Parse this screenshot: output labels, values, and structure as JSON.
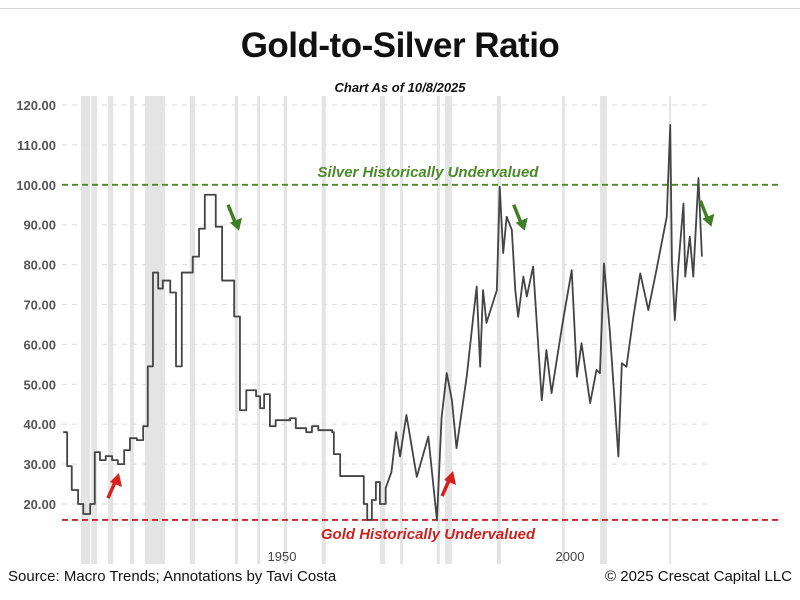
{
  "chart_data": {
    "type": "line",
    "title": "Gold-to-Silver Ratio",
    "subtitle": "Chart As of 10/8/2025",
    "xlabel": "",
    "ylabel": "",
    "xlim": [
      1905,
      2035
    ],
    "ylim": [
      15,
      120
    ],
    "x_tick_labels": [
      {
        "year": 1950,
        "label": "1950"
      },
      {
        "year": 2000,
        "label": "2000"
      }
    ],
    "y_ticks": [
      20,
      30,
      40,
      50,
      60,
      70,
      80,
      90,
      100,
      110,
      120
    ],
    "y_tick_labels": [
      "20.00",
      "30.00",
      "40.00",
      "50.00",
      "60.00",
      "70.00",
      "80.00",
      "90.00",
      "100.00",
      "110.00",
      "120.00"
    ],
    "grid": "horizontal dashed",
    "recession_bands": [
      [
        1915.1,
        1916.7
      ],
      [
        1916.9,
        1917.9
      ],
      [
        1919.8,
        1920.7
      ],
      [
        1923.6,
        1924.3
      ],
      [
        1926.2,
        1929.7
      ],
      [
        1934.0,
        1934.9
      ],
      [
        1941.8,
        1942.4
      ],
      [
        1945.7,
        1946.2
      ],
      [
        1950.3,
        1950.9
      ],
      [
        1956.9,
        1957.6
      ],
      [
        1967.0,
        1967.9
      ],
      [
        1970.5,
        1971.0
      ],
      [
        1976.9,
        1977.4
      ],
      [
        1978.3,
        1979.5
      ],
      [
        1987.3,
        1988.0
      ],
      [
        1998.6,
        1999.1
      ],
      [
        2005.2,
        2006.4
      ],
      [
        2017.2,
        2017.5
      ]
    ],
    "series": [
      {
        "name": "Gold-to-Silver Ratio",
        "color": "#444444",
        "step_until": 1968,
        "points": [
          [
            1912.0,
            38
          ],
          [
            1912.7,
            29.5
          ],
          [
            1913.5,
            23.5
          ],
          [
            1914.6,
            20
          ],
          [
            1915.5,
            17.5
          ],
          [
            1916.7,
            20
          ],
          [
            1917.5,
            33
          ],
          [
            1918.4,
            31
          ],
          [
            1919.4,
            32
          ],
          [
            1920.5,
            31
          ],
          [
            1921.5,
            30
          ],
          [
            1922.6,
            33.5
          ],
          [
            1923.6,
            36.5
          ],
          [
            1924.8,
            36
          ],
          [
            1925.9,
            39.5
          ],
          [
            1926.7,
            54.5
          ],
          [
            1927.6,
            78
          ],
          [
            1928.5,
            74
          ],
          [
            1929.3,
            76
          ],
          [
            1930.6,
            73
          ],
          [
            1931.6,
            54.5
          ],
          [
            1932.6,
            78
          ],
          [
            1934.5,
            82
          ],
          [
            1935.6,
            89
          ],
          [
            1936.6,
            97.5
          ],
          [
            1938.5,
            89.5
          ],
          [
            1939.6,
            76
          ],
          [
            1941.7,
            67
          ],
          [
            1942.7,
            43.5
          ],
          [
            1943.8,
            48.5
          ],
          [
            1945.5,
            47
          ],
          [
            1946.2,
            44
          ],
          [
            1946.9,
            47.5
          ],
          [
            1947.9,
            39.5
          ],
          [
            1948.9,
            41
          ],
          [
            1951.4,
            41.5
          ],
          [
            1952.4,
            39
          ],
          [
            1954.2,
            38
          ],
          [
            1955.2,
            39.5
          ],
          [
            1956.3,
            38.5
          ],
          [
            1958.7,
            38
          ],
          [
            1959.0,
            32.5
          ],
          [
            1960.1,
            27
          ],
          [
            1963.9,
            27
          ],
          [
            1964.2,
            20
          ],
          [
            1964.8,
            16
          ],
          [
            1965.6,
            21
          ],
          [
            1966.3,
            25.5
          ],
          [
            1967.0,
            20
          ],
          [
            1968.0,
            24
          ],
          [
            1969.0,
            28
          ],
          [
            1969.8,
            38
          ],
          [
            1970.5,
            31.9
          ],
          [
            1971.6,
            42.3
          ],
          [
            1973.4,
            26.8
          ],
          [
            1975.4,
            36.9
          ],
          [
            1976.9,
            16
          ],
          [
            1977.7,
            41.6
          ],
          [
            1978.6,
            52.8
          ],
          [
            1979.5,
            46
          ],
          [
            1980.3,
            34
          ],
          [
            1982.1,
            52.3
          ],
          [
            1983.2,
            66.9
          ],
          [
            1983.8,
            74.5
          ],
          [
            1984.4,
            54.4
          ],
          [
            1984.9,
            73.6
          ],
          [
            1985.5,
            65.4
          ],
          [
            1987.3,
            73.6
          ],
          [
            1987.8,
            99.5
          ],
          [
            1988.4,
            82.9
          ],
          [
            1989.0,
            92
          ],
          [
            1989.9,
            88.7
          ],
          [
            1990.5,
            73.6
          ],
          [
            1991.0,
            66.9
          ],
          [
            1991.9,
            77
          ],
          [
            1992.5,
            72
          ],
          [
            1993.6,
            79.5
          ],
          [
            1995.1,
            46
          ],
          [
            1995.9,
            58.6
          ],
          [
            1996.8,
            47.8
          ],
          [
            1997.7,
            56.1
          ],
          [
            1998.8,
            66.1
          ],
          [
            2000.3,
            78.6
          ],
          [
            2001.2,
            51.9
          ],
          [
            2002.0,
            60.3
          ],
          [
            2003.5,
            45.3
          ],
          [
            2004.6,
            53.6
          ],
          [
            2005.2,
            52.8
          ],
          [
            2005.9,
            80.3
          ],
          [
            2006.9,
            63.6
          ],
          [
            2008.4,
            31.9
          ],
          [
            2009.0,
            55.3
          ],
          [
            2009.8,
            54.4
          ],
          [
            2011.0,
            66.9
          ],
          [
            2012.2,
            77.8
          ],
          [
            2013.6,
            68.6
          ],
          [
            2015.0,
            78.6
          ],
          [
            2016.8,
            92
          ],
          [
            2017.4,
            115
          ],
          [
            2017.7,
            80.3
          ],
          [
            2018.2,
            66.1
          ],
          [
            2018.8,
            79.5
          ],
          [
            2019.7,
            95.3
          ],
          [
            2020.0,
            77
          ],
          [
            2020.8,
            87
          ],
          [
            2021.4,
            77
          ],
          [
            2022.3,
            101.7
          ],
          [
            2022.9,
            82
          ]
        ]
      }
    ],
    "reference_lines": [
      {
        "value": 100,
        "label": "Silver Historically Undervalued",
        "color": "#4a8a2a"
      },
      {
        "value": 16,
        "label": "Gold Historically Undervalued",
        "color": "#cc2222"
      }
    ],
    "annotations": [
      {
        "type": "arrow-down",
        "year": 1941.5,
        "value": 92,
        "color": "#3f7f25"
      },
      {
        "type": "arrow-down",
        "year": 1991.1,
        "value": 92,
        "color": "#3f7f25"
      },
      {
        "type": "arrow-down",
        "year": 2023.5,
        "value": 93,
        "color": "#3f7f25"
      },
      {
        "type": "arrow-up",
        "year": 1921.0,
        "value": 24.5,
        "color": "#d62020"
      },
      {
        "type": "arrow-up",
        "year": 1979.0,
        "value": 25,
        "color": "#d62020"
      }
    ]
  },
  "footer": {
    "source": "Source: Macro Trends; Annotations by Tavi Costa",
    "copyright": "© 2025 Crescat Capital LLC"
  }
}
